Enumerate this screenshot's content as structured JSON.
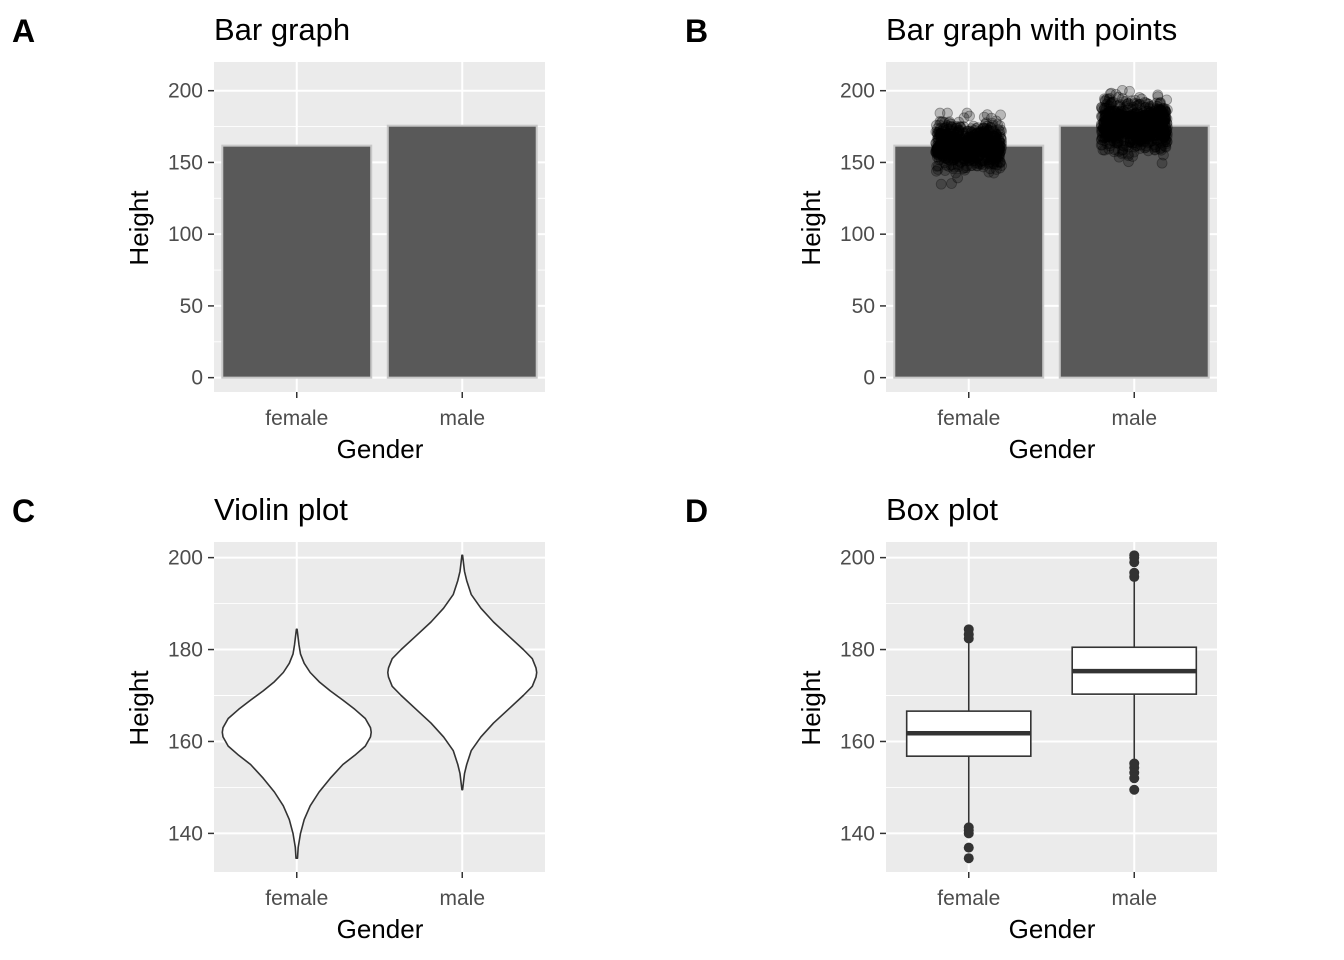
{
  "chart_data": [
    {
      "panel": "A",
      "type": "bar",
      "title": "Bar graph",
      "xlabel": "Gender",
      "ylabel": "Height",
      "categories": [
        "female",
        "male"
      ],
      "values": [
        161.7,
        175.6
      ],
      "ylim": [
        -10,
        220
      ],
      "yticks": [
        0,
        50,
        100,
        150,
        200
      ],
      "grid": true,
      "colors": {
        "panel_bg": "#ebebeb",
        "grid": "#ffffff",
        "bar_fill": "#595959",
        "bar_outline": "#c8c8c8"
      }
    },
    {
      "panel": "B",
      "type": "bar",
      "title": "Bar graph with points",
      "xlabel": "Gender",
      "ylabel": "Height",
      "categories": [
        "female",
        "male"
      ],
      "values": [
        161.7,
        175.6
      ],
      "ylim": [
        -10,
        220
      ],
      "yticks": [
        0,
        50,
        100,
        150,
        200
      ],
      "grid": true,
      "points": [
        {
          "category": "female",
          "min": 134.6,
          "max": 184.4,
          "core_low": 146,
          "core_high": 178
        },
        {
          "category": "male",
          "min": 149.5,
          "max": 200.5,
          "core_low": 158,
          "core_high": 194
        }
      ],
      "colors": {
        "panel_bg": "#ebebeb",
        "grid": "#ffffff",
        "bar_fill": "#595959",
        "bar_outline": "#c8c8c8",
        "points": "#000000"
      }
    },
    {
      "panel": "C",
      "type": "violin",
      "title": "Violin plot",
      "xlabel": "Gender",
      "ylabel": "Height",
      "categories": [
        "female",
        "male"
      ],
      "ylim": [
        131.6,
        203.4
      ],
      "yticks": [
        140,
        160,
        180,
        200
      ],
      "grid": true,
      "series": [
        {
          "category": "female",
          "min": 134.6,
          "max": 184.4,
          "density": [
            [
              134.6,
              0.01
            ],
            [
              137,
              0.02
            ],
            [
              140,
              0.05
            ],
            [
              143,
              0.1
            ],
            [
              146,
              0.18
            ],
            [
              149,
              0.3
            ],
            [
              152,
              0.45
            ],
            [
              155,
              0.62
            ],
            [
              157,
              0.78
            ],
            [
              159,
              0.92
            ],
            [
              161,
              0.99
            ],
            [
              162,
              1.0
            ],
            [
              163,
              0.99
            ],
            [
              165,
              0.92
            ],
            [
              167,
              0.78
            ],
            [
              169,
              0.62
            ],
            [
              171,
              0.45
            ],
            [
              173,
              0.3
            ],
            [
              175,
              0.18
            ],
            [
              177,
              0.1
            ],
            [
              179,
              0.05
            ],
            [
              181,
              0.03
            ],
            [
              183,
              0.015
            ],
            [
              184.4,
              0.005
            ]
          ]
        },
        {
          "category": "male",
          "min": 149.5,
          "max": 200.5,
          "density": [
            [
              149.5,
              0.005
            ],
            [
              151,
              0.015
            ],
            [
              153,
              0.03
            ],
            [
              155,
              0.06
            ],
            [
              158,
              0.12
            ],
            [
              161,
              0.25
            ],
            [
              164,
              0.42
            ],
            [
              167,
              0.62
            ],
            [
              170,
              0.82
            ],
            [
              172,
              0.94
            ],
            [
              174,
              0.99
            ],
            [
              175,
              1.0
            ],
            [
              176,
              0.99
            ],
            [
              178,
              0.94
            ],
            [
              180,
              0.82
            ],
            [
              183,
              0.62
            ],
            [
              186,
              0.42
            ],
            [
              189,
              0.25
            ],
            [
              192,
              0.12
            ],
            [
              195,
              0.06
            ],
            [
              197,
              0.03
            ],
            [
              199,
              0.015
            ],
            [
              200.5,
              0.005
            ]
          ]
        }
      ],
      "colors": {
        "panel_bg": "#ebebeb",
        "grid": "#ffffff",
        "fill": "#ffffff",
        "outline": "#333333"
      }
    },
    {
      "panel": "D",
      "type": "box",
      "title": "Box plot",
      "xlabel": "Gender",
      "ylabel": "Height",
      "categories": [
        "female",
        "male"
      ],
      "ylim": [
        131.6,
        203.4
      ],
      "yticks": [
        140,
        160,
        180,
        200
      ],
      "grid": true,
      "series": [
        {
          "category": "female",
          "q1": 156.8,
          "median": 161.8,
          "q3": 166.6,
          "whisker_low": 142.2,
          "whisker_high": 181.5,
          "outliers": [
            134.6,
            136.9,
            140.0,
            140.7,
            141.3,
            182.4,
            183.3,
            184.4
          ]
        },
        {
          "category": "male",
          "q1": 170.3,
          "median": 175.3,
          "q3": 180.5,
          "whisker_low": 155.9,
          "whisker_high": 194.8,
          "outliers": [
            149.5,
            152.0,
            153.2,
            154.3,
            155.2,
            195.8,
            196.7,
            199.0,
            200.0,
            200.5
          ]
        }
      ],
      "colors": {
        "panel_bg": "#ebebeb",
        "grid": "#ffffff",
        "box_fill": "#ffffff",
        "outline": "#333333"
      }
    }
  ]
}
